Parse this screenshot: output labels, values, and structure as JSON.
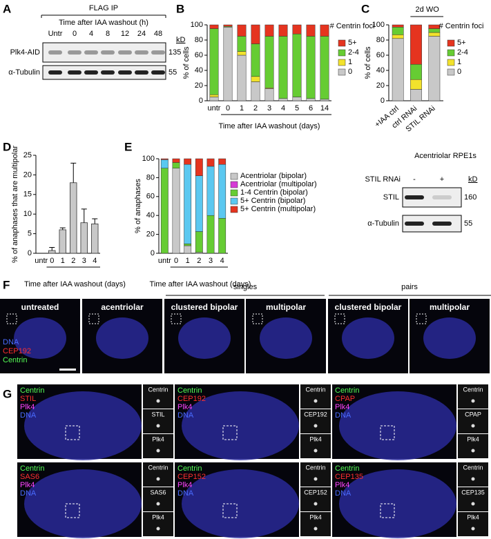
{
  "panel_labels": [
    "A",
    "B",
    "C",
    "D",
    "E",
    "F",
    "G"
  ],
  "panel_a": {
    "title": "FLAG IP",
    "subtitle": "Time after IAA washout (h)",
    "lanes": [
      "Untr",
      "0",
      "4",
      "8",
      "12",
      "24",
      "48"
    ],
    "size_unit": "kD",
    "rows": [
      {
        "label": "Plk4-AID",
        "size": "135"
      },
      {
        "label": "α-Tubulin",
        "size": "55"
      }
    ]
  },
  "chart_data": [
    {
      "type": "bar",
      "stacked": true,
      "ylabel": "% of cells",
      "xlabel": "Time after IAA washout (days)",
      "legend_title": "# Centrin foci",
      "categories": [
        "untr",
        "0",
        "1",
        "2",
        "3",
        "4",
        "5",
        "6",
        "14"
      ],
      "ylim": [
        0,
        100
      ],
      "yticks": [
        0,
        20,
        40,
        60,
        80,
        100
      ],
      "series": [
        {
          "name": "0",
          "color": "#c8c8c8",
          "values": [
            5,
            97,
            60,
            25,
            16,
            3,
            5,
            3,
            2
          ]
        },
        {
          "name": "1",
          "color": "#f2e22c",
          "values": [
            3,
            0,
            5,
            7,
            1,
            0,
            0,
            0,
            0
          ]
        },
        {
          "name": "2-4",
          "color": "#66cc33",
          "values": [
            87,
            1,
            20,
            43,
            68,
            82,
            83,
            82,
            83
          ]
        },
        {
          "name": "5+",
          "color": "#e5341f",
          "values": [
            5,
            2,
            15,
            25,
            15,
            15,
            12,
            15,
            15
          ]
        }
      ]
    },
    {
      "type": "bar",
      "stacked": true,
      "ylabel": "% of cells",
      "annotation": "2d WO",
      "legend_title": "# Centrin foci",
      "categories": [
        "+IAA ctrl",
        "ctrl RNAi",
        "STIL RNAi"
      ],
      "ylim": [
        0,
        100
      ],
      "yticks": [
        0,
        20,
        40,
        60,
        80,
        100
      ],
      "series": [
        {
          "name": "0",
          "color": "#c8c8c8",
          "values": [
            82,
            15,
            85
          ]
        },
        {
          "name": "1",
          "color": "#f2e22c",
          "values": [
            5,
            13,
            5
          ]
        },
        {
          "name": "2-4",
          "color": "#66cc33",
          "values": [
            10,
            20,
            5
          ]
        },
        {
          "name": "5+",
          "color": "#e5341f",
          "values": [
            3,
            52,
            5
          ]
        }
      ]
    },
    {
      "type": "bar",
      "ylabel": "% of anaphases that are multipolar",
      "xlabel": "Time after IAA washout (days)",
      "categories": [
        "untr",
        "0",
        "1",
        "2",
        "3",
        "4"
      ],
      "values": [
        0,
        0.7,
        6,
        18,
        7.8,
        7.5
      ],
      "errors": [
        0,
        0.8,
        0.5,
        5,
        3.5,
        1.3
      ],
      "color": "#c8c8c8",
      "ylim": [
        0,
        25
      ],
      "yticks": [
        0,
        5,
        10,
        15,
        20,
        25
      ]
    },
    {
      "type": "bar",
      "stacked": true,
      "ylabel": "% of anaphases",
      "xlabel": "Time after IAA washout (days)",
      "categories": [
        "untr",
        "0",
        "1",
        "2",
        "3",
        "4"
      ],
      "ylim": [
        0,
        100
      ],
      "yticks": [
        0,
        20,
        40,
        60,
        80,
        100
      ],
      "series": [
        {
          "name": "Acentriolar (bipolar)",
          "color": "#c8c8c8",
          "values": [
            0,
            90,
            8,
            1,
            0,
            0
          ]
        },
        {
          "name": "Acentriolar (multipolar)",
          "color": "#d63ad6",
          "values": [
            0,
            0,
            0,
            0,
            0,
            0
          ]
        },
        {
          "name": "1-4 Centrin (bipolar)",
          "color": "#66cc33",
          "values": [
            90,
            6,
            2,
            22,
            40,
            37
          ]
        },
        {
          "name": "5+ Centrin (bipolar)",
          "color": "#5bc8f0",
          "values": [
            9,
            0,
            84,
            59,
            52,
            57
          ]
        },
        {
          "name": "5+ Centrin (multipolar)",
          "color": "#e5341f",
          "values": [
            1,
            4,
            6,
            18,
            8,
            6
          ]
        }
      ]
    }
  ],
  "stil_blot": {
    "title": "Acentriolar RPE1s",
    "condition": "STIL RNAi",
    "lanes": [
      "-",
      "+"
    ],
    "size_unit": "kD",
    "rows": [
      {
        "label": "STIL",
        "size": "160"
      },
      {
        "label": "α-Tubulin",
        "size": "55"
      }
    ]
  },
  "panel_f": {
    "groups": [
      "singles",
      "pairs"
    ],
    "images": [
      "untreated",
      "acentriolar",
      "clustered bipolar",
      "multipolar",
      "clustered bipolar",
      "multipolar"
    ],
    "channels": [
      "DNA",
      "CEP192",
      "Centrin"
    ]
  },
  "panel_g": {
    "tiles": [
      {
        "channels": [
          "Centrin",
          "STIL",
          "Plk4",
          "DNA"
        ]
      },
      {
        "channels": [
          "Centrin",
          "CEP192",
          "Plk4",
          "DNA"
        ]
      },
      {
        "channels": [
          "Centrin",
          "CPAP",
          "Plk4",
          "DNA"
        ]
      },
      {
        "channels": [
          "Centrin",
          "SAS6",
          "Plk4",
          "DNA"
        ]
      },
      {
        "channels": [
          "Centrin",
          "CEP152",
          "Plk4",
          "DNA"
        ]
      },
      {
        "channels": [
          "Centrin",
          "CEP135",
          "Plk4",
          "DNA"
        ]
      }
    ]
  }
}
